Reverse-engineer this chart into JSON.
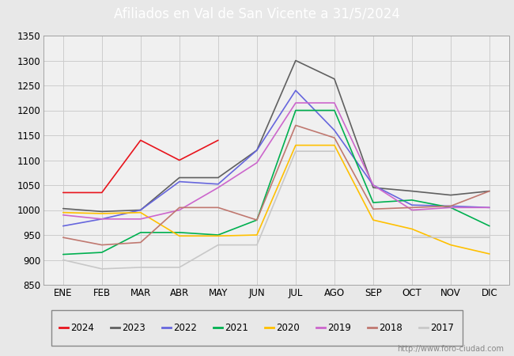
{
  "title": "Afiliados en Val de San Vicente a 31/5/2024",
  "title_bg_color": "#4b7fd4",
  "title_text_color": "white",
  "months": [
    "ENE",
    "FEB",
    "MAR",
    "ABR",
    "MAY",
    "JUN",
    "JUL",
    "AGO",
    "SEP",
    "OCT",
    "NOV",
    "DIC"
  ],
  "ylim": [
    850,
    1350
  ],
  "yticks": [
    850,
    900,
    950,
    1000,
    1050,
    1100,
    1150,
    1200,
    1250,
    1300,
    1350
  ],
  "series": {
    "2024": {
      "color": "#e8141c",
      "data": [
        1035,
        1035,
        1140,
        1100,
        1140,
        null,
        null,
        null,
        null,
        null,
        null,
        null
      ]
    },
    "2023": {
      "color": "#606060",
      "data": [
        1003,
        997,
        1000,
        1065,
        1065,
        1120,
        1300,
        1263,
        1045,
        1038,
        1030,
        1038
      ]
    },
    "2022": {
      "color": "#6666dd",
      "data": [
        968,
        982,
        1000,
        1057,
        1052,
        1120,
        1240,
        1160,
        1050,
        1010,
        1008,
        1005
      ]
    },
    "2021": {
      "color": "#00b050",
      "data": [
        911,
        915,
        955,
        955,
        950,
        980,
        1200,
        1200,
        1015,
        1020,
        1005,
        968
      ]
    },
    "2020": {
      "color": "#ffc000",
      "data": [
        995,
        993,
        995,
        948,
        948,
        950,
        1130,
        1130,
        980,
        962,
        930,
        912
      ]
    },
    "2019": {
      "color": "#cc66cc",
      "data": [
        990,
        982,
        982,
        1000,
        1045,
        1095,
        1215,
        1215,
        1050,
        1000,
        1005,
        1005
      ]
    },
    "2018": {
      "color": "#c07870",
      "data": [
        945,
        930,
        935,
        1005,
        1005,
        980,
        1170,
        1145,
        1002,
        1005,
        1008,
        1038
      ]
    },
    "2017": {
      "color": "#c8c8c8",
      "data": [
        900,
        882,
        885,
        885,
        930,
        930,
        1118,
        1118,
        null,
        945,
        945,
        945
      ]
    }
  },
  "watermark": "http://www.foro-ciudad.com",
  "background_color": "#e8e8e8",
  "plot_bg_color": "#f0f0f0",
  "grid_color": "#cccccc"
}
